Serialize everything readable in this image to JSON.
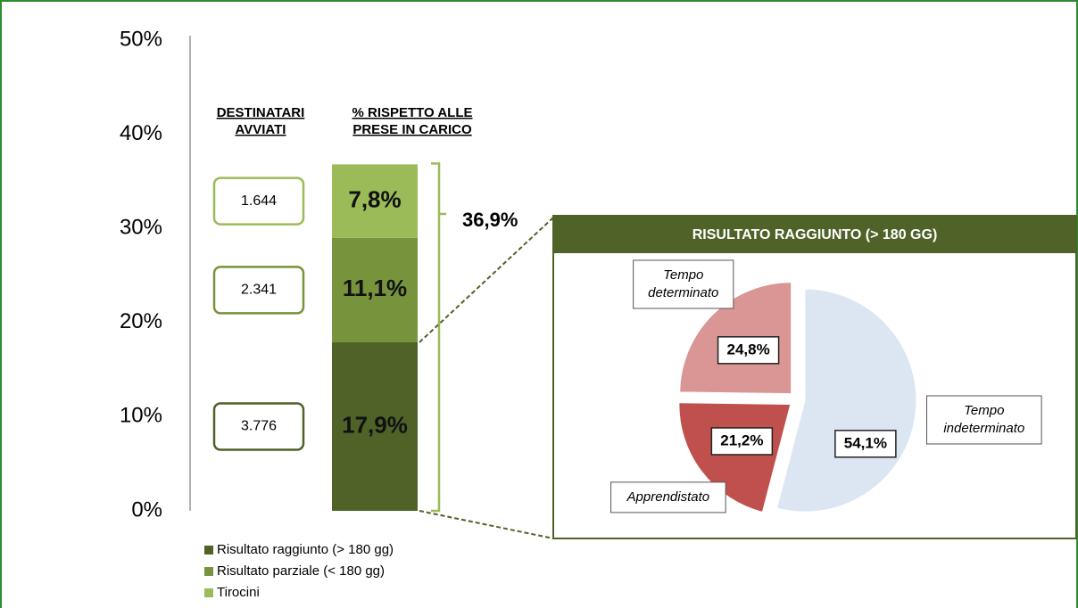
{
  "chart_data": [
    {
      "type": "stacked_bar",
      "categories": [
        null
      ],
      "ylim": [
        0,
        50
      ],
      "yticks": [
        {
          "value": 0,
          "label": "0%"
        },
        {
          "value": 10,
          "label": "10%"
        },
        {
          "value": 20,
          "label": "20%"
        },
        {
          "value": 30,
          "label": "30%"
        },
        {
          "value": 40,
          "label": "40%"
        },
        {
          "value": 50,
          "label": "50%"
        }
      ],
      "count_header": "DESTINATARI AVVIATI",
      "value_header": "% RISPETTO ALLE PRESE IN CARICO",
      "total": 36.9,
      "total_label": "36,9%",
      "series": [
        {
          "name": "Risultato raggiunto (> 180 gg)",
          "color": "#4f6228",
          "values": [
            17.9
          ],
          "value_labels": [
            "17,9%"
          ],
          "count_label": "3.776"
        },
        {
          "name": "Risultato parziale (< 180 gg)",
          "color": "#77933c",
          "values": [
            11.1
          ],
          "value_labels": [
            "11,1%"
          ],
          "count_label": "2.341"
        },
        {
          "name": "Tirocini",
          "color": "#9bbb59",
          "values": [
            7.8
          ],
          "value_labels": [
            "7,8%"
          ],
          "count_label": "1.644"
        }
      ]
    },
    {
      "type": "pie",
      "title": "RISULTATO RAGGIUNTO (> 180 GG)",
      "categories": [
        "Tempo indeterminato",
        "Apprendistato",
        "Tempo determinato"
      ],
      "values": [
        54.1,
        21.2,
        24.8
      ],
      "value_labels": [
        "54,1%",
        "21,2%",
        "24,8%"
      ],
      "colors": [
        "#dce6f2",
        "#c0504d",
        "#d99694"
      ]
    }
  ]
}
